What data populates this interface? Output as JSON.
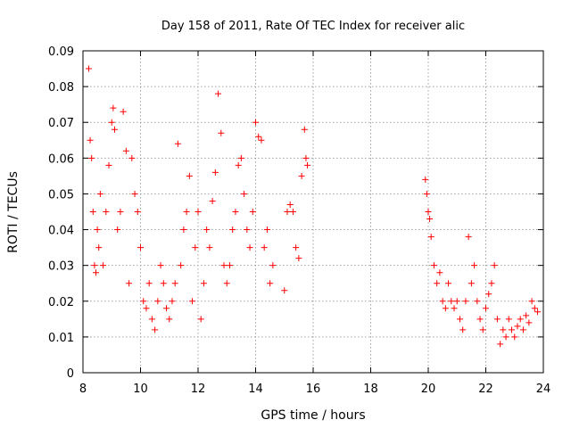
{
  "chart_data": {
    "type": "scatter",
    "title": "Day 158 of 2011, Rate Of TEC Index for receiver alic",
    "xlabel": "GPS time / hours",
    "ylabel": "ROTI / TECUs",
    "xlim": [
      8,
      24
    ],
    "ylim": [
      0,
      0.09
    ],
    "x_ticks": [
      "8",
      "10",
      "12",
      "14",
      "16",
      "18",
      "20",
      "22",
      "24"
    ],
    "y_ticks": [
      "0",
      "0.01",
      "0.02",
      "0.03",
      "0.04",
      "0.05",
      "0.06",
      "0.07",
      "0.08",
      "0.09"
    ],
    "grid": true,
    "marker": "plus",
    "color": "#ff0000",
    "series": [
      {
        "x": [
          8.2,
          8.25,
          8.3,
          8.35,
          8.4,
          8.45,
          8.5,
          8.55,
          8.6,
          8.7,
          8.8,
          8.9,
          9.0,
          9.05,
          9.1,
          9.2,
          9.3,
          9.4,
          9.5,
          9.6,
          9.7,
          9.8,
          9.9,
          10.0,
          10.1,
          10.2,
          10.3,
          10.4,
          10.5,
          10.6,
          10.7,
          10.8,
          10.9,
          11.0,
          11.1,
          11.2,
          11.3,
          11.4,
          11.5,
          11.6,
          11.7,
          11.8,
          11.9,
          12.0,
          12.1,
          12.2,
          12.3,
          12.4,
          12.5,
          12.6,
          12.7,
          12.8,
          12.9,
          13.0,
          13.1,
          13.2,
          13.3,
          13.4,
          13.5,
          13.6,
          13.7,
          13.8,
          13.9,
          14.0,
          14.1,
          14.2,
          14.3,
          14.4,
          14.5,
          14.6,
          15.0,
          15.1,
          15.2,
          15.3,
          15.4,
          15.5,
          15.6,
          15.7,
          15.75,
          15.8,
          19.9,
          19.95,
          20.0,
          20.05,
          20.1,
          20.2,
          20.3,
          20.4,
          20.5,
          20.6,
          20.7,
          20.8,
          20.9,
          21.0,
          21.1,
          21.2,
          21.3,
          21.4,
          21.5,
          21.6,
          21.7,
          21.8,
          21.9,
          22.0,
          22.1,
          22.2,
          22.3,
          22.4,
          22.5,
          22.6,
          22.7,
          22.8,
          22.9,
          23.0,
          23.1,
          23.2,
          23.3,
          23.4,
          23.5,
          23.6,
          23.7,
          23.8
        ],
        "y": [
          0.085,
          0.065,
          0.06,
          0.045,
          0.03,
          0.028,
          0.04,
          0.035,
          0.05,
          0.03,
          0.045,
          0.058,
          0.07,
          0.074,
          0.068,
          0.04,
          0.045,
          0.073,
          0.062,
          0.025,
          0.06,
          0.05,
          0.045,
          0.035,
          0.02,
          0.018,
          0.025,
          0.015,
          0.012,
          0.02,
          0.03,
          0.025,
          0.018,
          0.015,
          0.02,
          0.025,
          0.064,
          0.03,
          0.04,
          0.045,
          0.055,
          0.02,
          0.035,
          0.045,
          0.015,
          0.025,
          0.04,
          0.035,
          0.048,
          0.056,
          0.078,
          0.067,
          0.03,
          0.025,
          0.03,
          0.04,
          0.045,
          0.058,
          0.06,
          0.05,
          0.04,
          0.035,
          0.045,
          0.07,
          0.066,
          0.065,
          0.035,
          0.04,
          0.025,
          0.03,
          0.023,
          0.045,
          0.047,
          0.045,
          0.035,
          0.032,
          0.055,
          0.068,
          0.06,
          0.058,
          0.054,
          0.05,
          0.045,
          0.043,
          0.038,
          0.03,
          0.025,
          0.028,
          0.02,
          0.018,
          0.025,
          0.02,
          0.018,
          0.02,
          0.015,
          0.012,
          0.02,
          0.038,
          0.025,
          0.03,
          0.02,
          0.015,
          0.012,
          0.018,
          0.022,
          0.025,
          0.03,
          0.015,
          0.008,
          0.012,
          0.01,
          0.015,
          0.012,
          0.01,
          0.013,
          0.015,
          0.012,
          0.016,
          0.014,
          0.02,
          0.018,
          0.017
        ]
      }
    ]
  }
}
